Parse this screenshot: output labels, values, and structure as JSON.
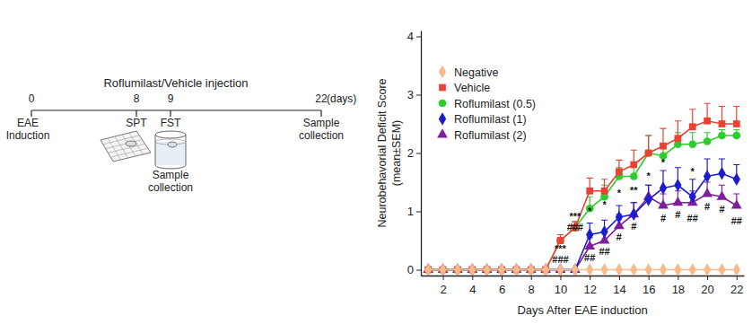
{
  "timeline": {
    "title": "Roflumilast/Vehicle injection",
    "unit": "(days)",
    "events": [
      {
        "day": 0,
        "label": [
          "EAE",
          "Induction"
        ]
      },
      {
        "day": 8,
        "label": [
          "SPT"
        ]
      },
      {
        "day": 9,
        "label": [
          "FST"
        ],
        "sublabel": [
          "Sample",
          "collection"
        ]
      },
      {
        "day": 22,
        "label": [
          "Sample",
          "collection"
        ]
      }
    ]
  },
  "chart_data": {
    "type": "line",
    "x_label": "Days After EAE induction",
    "y_label": "Neurobehavorial Deficit Score",
    "y_sublabel": "(mean±SEM)",
    "x": [
      1,
      2,
      3,
      4,
      5,
      6,
      7,
      8,
      9,
      10,
      11,
      12,
      13,
      14,
      15,
      16,
      17,
      18,
      19,
      20,
      21,
      22
    ],
    "xlim": [
      0.5,
      22.5
    ],
    "xticks": [
      2,
      4,
      6,
      8,
      10,
      12,
      14,
      16,
      18,
      20,
      22
    ],
    "ylim": [
      -0.1,
      4.1
    ],
    "yticks": [
      0,
      1,
      2,
      3,
      4
    ],
    "grid": false,
    "legend": "upper left",
    "series": [
      {
        "name": "Negative",
        "color": "#f8b98c",
        "marker": "diamond",
        "values": [
          0,
          0,
          0,
          0,
          0,
          0,
          0,
          0,
          0,
          0,
          0,
          0,
          0,
          0,
          0,
          0,
          0,
          0,
          0,
          0,
          0,
          0
        ]
      },
      {
        "name": "Vehicle",
        "color": "#ee4035",
        "marker": "square",
        "values": [
          0,
          0,
          0,
          0,
          0,
          0,
          0,
          0,
          0,
          0.5,
          0.72,
          1.35,
          1.35,
          1.68,
          1.8,
          2.0,
          2.12,
          2.25,
          2.45,
          2.55,
          2.5,
          2.5
        ],
        "errors": [
          0,
          0,
          0,
          0,
          0,
          0,
          0,
          0,
          0,
          0.1,
          0.1,
          0.22,
          0.2,
          0.2,
          0.25,
          0.3,
          0.3,
          0.3,
          0.3,
          0.3,
          0.3,
          0.3
        ]
      },
      {
        "name": "Roflumilast (0.5)",
        "color": "#2ecc2e",
        "marker": "circle",
        "values": [
          0,
          0,
          0,
          0,
          0,
          0,
          0,
          0,
          0,
          0.5,
          0.72,
          1.05,
          1.25,
          1.6,
          1.6,
          2.0,
          1.95,
          2.15,
          2.15,
          2.2,
          2.3,
          2.3
        ],
        "errors": [
          0,
          0,
          0,
          0,
          0,
          0,
          0,
          0,
          0,
          0.1,
          0.1,
          0.2,
          0.2,
          0.15,
          0.2,
          0.3,
          0.2,
          0.2,
          0.2,
          0.15,
          0.1,
          0.1
        ]
      },
      {
        "name": "Roflumilast (1)",
        "color": "#1c1ccf",
        "marker": "diamond",
        "values": [
          0,
          0,
          0,
          0,
          0,
          0,
          0,
          0,
          0,
          0,
          0,
          0.6,
          0.65,
          0.9,
          0.95,
          1.2,
          1.4,
          1.45,
          1.25,
          1.6,
          1.65,
          1.55
        ],
        "errors": [
          0,
          0,
          0,
          0,
          0,
          0,
          0,
          0,
          0,
          0,
          0,
          0.2,
          0.2,
          0.2,
          0.2,
          0.25,
          0.3,
          0.3,
          0.3,
          0.3,
          0.25,
          0.25
        ]
      },
      {
        "name": "Roflumilast (2)",
        "color": "#7d1e9c",
        "marker": "triangle",
        "values": [
          0,
          0,
          0,
          0,
          0,
          0,
          0,
          0,
          0,
          0,
          0,
          0.4,
          0.5,
          0.75,
          0.95,
          1.25,
          1.1,
          1.15,
          1.15,
          1.3,
          1.25,
          1.1
        ],
        "errors": [
          0,
          0,
          0,
          0,
          0,
          0,
          0,
          0,
          0,
          0,
          0,
          0.15,
          0.15,
          0.2,
          0.2,
          0.2,
          0.2,
          0.2,
          0.2,
          0.2,
          0.2,
          0.2
        ]
      }
    ],
    "annotations": [
      {
        "x": 10,
        "y": 0.3,
        "text": "***"
      },
      {
        "x": 10,
        "y": 0.12,
        "text": "###"
      },
      {
        "x": 11,
        "y": 0.85,
        "text": "***"
      },
      {
        "x": 11,
        "y": 0.67,
        "text": "###"
      },
      {
        "x": 12,
        "y": 0.95,
        "text": "*"
      },
      {
        "x": 12,
        "y": 0.15,
        "text": "##"
      },
      {
        "x": 13,
        "y": 1.05,
        "text": "*"
      },
      {
        "x": 13,
        "y": 0.25,
        "text": "##"
      },
      {
        "x": 14,
        "y": 1.25,
        "text": "*"
      },
      {
        "x": 14,
        "y": 0.5,
        "text": "#"
      },
      {
        "x": 15,
        "y": 1.3,
        "text": "**"
      },
      {
        "x": 15,
        "y": 0.68,
        "text": "#"
      },
      {
        "x": 16,
        "y": 1.55,
        "text": "*"
      },
      {
        "x": 17,
        "y": 1.78,
        "text": "*"
      },
      {
        "x": 17,
        "y": 0.83,
        "text": "#"
      },
      {
        "x": 18,
        "y": 0.88,
        "text": "#"
      },
      {
        "x": 19,
        "y": 1.62,
        "text": "*"
      },
      {
        "x": 19,
        "y": 0.83,
        "text": "##"
      },
      {
        "x": 20,
        "y": 1.02,
        "text": "#"
      },
      {
        "x": 21,
        "y": 0.97,
        "text": "#"
      },
      {
        "x": 22,
        "y": 0.78,
        "text": "##"
      }
    ]
  }
}
